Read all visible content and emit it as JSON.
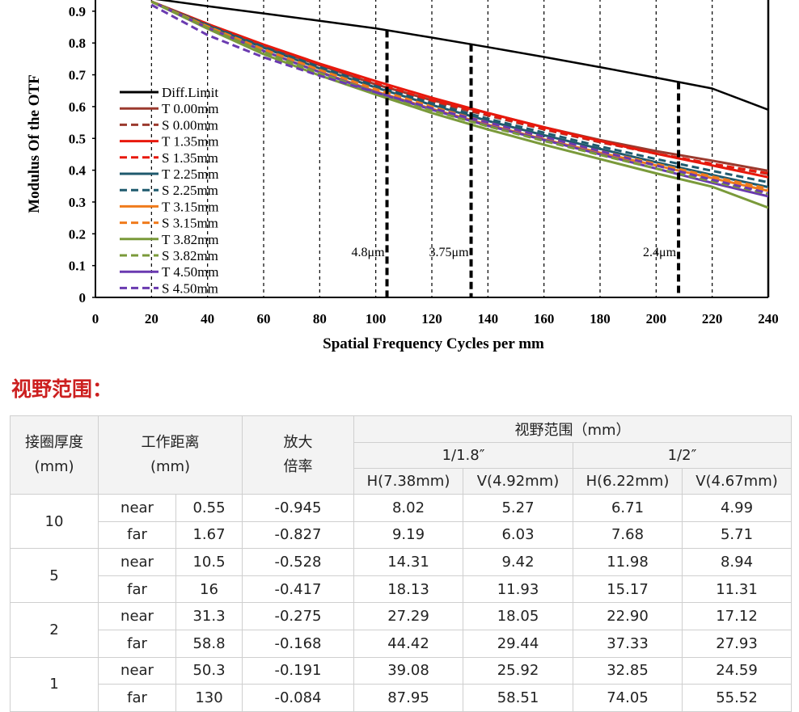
{
  "chart_data": {
    "type": "line",
    "xlabel": "Spatial Frequency Cycles per mm",
    "ylabel": "Modulus Of  the OTF",
    "xlim": [
      0,
      240
    ],
    "ylim": [
      0,
      0.95
    ],
    "xticks": [
      "0",
      "20",
      "40",
      "60",
      "80",
      "100",
      "120",
      "140",
      "160",
      "180",
      "200",
      "220",
      "240"
    ],
    "yticks": [
      "0",
      "0.1",
      "0.2",
      "0.3",
      "0.4",
      "0.5",
      "0.6",
      "0.7",
      "0.8",
      "0.9"
    ],
    "grid": "vertical dashed",
    "legend_position": "left",
    "series": [
      {
        "name": "Diff.Limit",
        "color": "#000000",
        "dash": false,
        "x": [
          20,
          40,
          60,
          80,
          100,
          120,
          140,
          160,
          180,
          200,
          220,
          240
        ],
        "y": [
          0.94,
          0.916,
          0.893,
          0.87,
          0.846,
          0.817,
          0.787,
          0.756,
          0.724,
          0.691,
          0.657,
          0.59
        ]
      },
      {
        "name": "T 0.00mm",
        "color": "#9b3a2e",
        "dash": false,
        "x": [
          20,
          40,
          60,
          80,
          100,
          120,
          140,
          160,
          180,
          200,
          220,
          240
        ],
        "y": [
          0.93,
          0.86,
          0.79,
          0.73,
          0.67,
          0.62,
          0.58,
          0.535,
          0.495,
          0.46,
          0.43,
          0.398
        ]
      },
      {
        "name": "S 0.00mm",
        "color": "#9b3a2e",
        "dash": true,
        "x": [
          20,
          40,
          60,
          80,
          100,
          120,
          140,
          160,
          180,
          200,
          220,
          240
        ],
        "y": [
          0.93,
          0.855,
          0.785,
          0.725,
          0.665,
          0.615,
          0.572,
          0.528,
          0.488,
          0.452,
          0.42,
          0.388
        ]
      },
      {
        "name": "T 1.35mm",
        "color": "#e8180c",
        "dash": false,
        "x": [
          20,
          40,
          60,
          80,
          100,
          120,
          140,
          160,
          180,
          200,
          220,
          240
        ],
        "y": [
          0.93,
          0.86,
          0.795,
          0.735,
          0.68,
          0.628,
          0.58,
          0.535,
          0.492,
          0.452,
          0.415,
          0.378
        ]
      },
      {
        "name": "S 1.35mm",
        "color": "#e8180c",
        "dash": true,
        "x": [
          20,
          40,
          60,
          80,
          100,
          120,
          140,
          160,
          180,
          200,
          220,
          240
        ],
        "y": [
          0.93,
          0.858,
          0.79,
          0.73,
          0.672,
          0.62,
          0.575,
          0.53,
          0.49,
          0.452,
          0.42,
          0.39
        ]
      },
      {
        "name": "T 2.25mm",
        "color": "#1f5a6e",
        "dash": false,
        "x": [
          20,
          40,
          60,
          80,
          100,
          120,
          140,
          160,
          180,
          200,
          220,
          240
        ],
        "y": [
          0.93,
          0.855,
          0.785,
          0.72,
          0.66,
          0.605,
          0.555,
          0.51,
          0.467,
          0.425,
          0.385,
          0.347
        ]
      },
      {
        "name": "S 2.25mm",
        "color": "#1f5a6e",
        "dash": true,
        "x": [
          20,
          40,
          60,
          80,
          100,
          120,
          140,
          160,
          180,
          200,
          220,
          240
        ],
        "y": [
          0.93,
          0.857,
          0.788,
          0.725,
          0.665,
          0.61,
          0.562,
          0.518,
          0.475,
          0.435,
          0.398,
          0.362
        ]
      },
      {
        "name": "T 3.15mm",
        "color": "#f07b1c",
        "dash": false,
        "x": [
          20,
          40,
          60,
          80,
          100,
          120,
          140,
          160,
          180,
          200,
          220,
          240
        ],
        "y": [
          0.93,
          0.85,
          0.775,
          0.71,
          0.648,
          0.593,
          0.543,
          0.497,
          0.455,
          0.415,
          0.375,
          0.335
        ]
      },
      {
        "name": "S 3.15mm",
        "color": "#f07b1c",
        "dash": true,
        "x": [
          20,
          40,
          60,
          80,
          100,
          120,
          140,
          160,
          180,
          200,
          220,
          240
        ],
        "y": [
          0.93,
          0.852,
          0.78,
          0.715,
          0.655,
          0.6,
          0.55,
          0.504,
          0.46,
          0.42,
          0.38,
          0.342
        ]
      },
      {
        "name": "T 3.82mm",
        "color": "#7a9a3a",
        "dash": false,
        "x": [
          20,
          40,
          60,
          80,
          100,
          120,
          140,
          160,
          180,
          200,
          220,
          240
        ],
        "y": [
          0.93,
          0.845,
          0.765,
          0.698,
          0.638,
          0.58,
          0.528,
          0.48,
          0.435,
          0.39,
          0.348,
          0.282
        ]
      },
      {
        "name": "S 3.82mm",
        "color": "#7a9a3a",
        "dash": true,
        "x": [
          20,
          40,
          60,
          80,
          100,
          120,
          140,
          160,
          180,
          200,
          220,
          240
        ],
        "y": [
          0.93,
          0.848,
          0.772,
          0.705,
          0.645,
          0.588,
          0.538,
          0.492,
          0.448,
          0.405,
          0.365,
          0.325
        ]
      },
      {
        "name": "T 4.50mm",
        "color": "#6a3ab0",
        "dash": false,
        "x": [
          20,
          40,
          60,
          80,
          100,
          120,
          140,
          160,
          180,
          200,
          220,
          240
        ],
        "y": [
          0.93,
          0.848,
          0.775,
          0.708,
          0.645,
          0.59,
          0.54,
          0.495,
          0.45,
          0.405,
          0.36,
          0.318
        ]
      },
      {
        "name": "S 4.50mm",
        "color": "#6a3ab0",
        "dash": true,
        "x": [
          20,
          40,
          60,
          80,
          100,
          120,
          140,
          160,
          180,
          200,
          220,
          240
        ],
        "y": [
          0.92,
          0.825,
          0.755,
          0.697,
          0.645,
          0.595,
          0.55,
          0.505,
          0.46,
          0.415,
          0.37,
          0.328
        ]
      }
    ],
    "markers": [
      {
        "x": 104,
        "label": "4.8μm"
      },
      {
        "x": 134,
        "label": "3.75μm"
      },
      {
        "x": 208,
        "label": "2.4μm"
      }
    ]
  },
  "section_title": "视野范围：",
  "table": {
    "h_thickness": "接圈厚度",
    "h_thickness_unit": "(mm)",
    "h_distance": "工作距离",
    "h_distance_unit": "(mm)",
    "h_mag": "放大",
    "h_mag2": "倍率",
    "h_fov": "视野范围（mm）",
    "h_sensor1": "1/1.8″",
    "h_sensor2": "1/2″",
    "h_cols": [
      "H(7.38mm)",
      "V(4.92mm)",
      "H(6.22mm)",
      "V(4.67mm)"
    ],
    "groups": [
      {
        "thickness": "10",
        "rows": [
          {
            "pos": "near",
            "dist": "0.55",
            "mag": "-0.945",
            "v1": "8.02",
            "v2": "5.27",
            "v3": "6.71",
            "v4": "4.99"
          },
          {
            "pos": "far",
            "dist": "1.67",
            "mag": "-0.827",
            "v1": "9.19",
            "v2": "6.03",
            "v3": "7.68",
            "v4": "5.71"
          }
        ]
      },
      {
        "thickness": "5",
        "rows": [
          {
            "pos": "near",
            "dist": "10.5",
            "mag": "-0.528",
            "v1": "14.31",
            "v2": "9.42",
            "v3": "11.98",
            "v4": "8.94"
          },
          {
            "pos": "far",
            "dist": "16",
            "mag": "-0.417",
            "v1": "18.13",
            "v2": "11.93",
            "v3": "15.17",
            "v4": "11.31"
          }
        ]
      },
      {
        "thickness": "2",
        "rows": [
          {
            "pos": "near",
            "dist": "31.3",
            "mag": "-0.275",
            "v1": "27.29",
            "v2": "18.05",
            "v3": "22.90",
            "v4": "17.12"
          },
          {
            "pos": "far",
            "dist": "58.8",
            "mag": "-0.168",
            "v1": "44.42",
            "v2": "29.44",
            "v3": "37.33",
            "v4": "27.93"
          }
        ]
      },
      {
        "thickness": "1",
        "rows": [
          {
            "pos": "near",
            "dist": "50.3",
            "mag": "-0.191",
            "v1": "39.08",
            "v2": "25.92",
            "v3": "32.85",
            "v4": "24.59"
          },
          {
            "pos": "far",
            "dist": "130",
            "mag": "-0.084",
            "v1": "87.95",
            "v2": "58.51",
            "v3": "74.05",
            "v4": "55.52"
          }
        ]
      }
    ]
  }
}
